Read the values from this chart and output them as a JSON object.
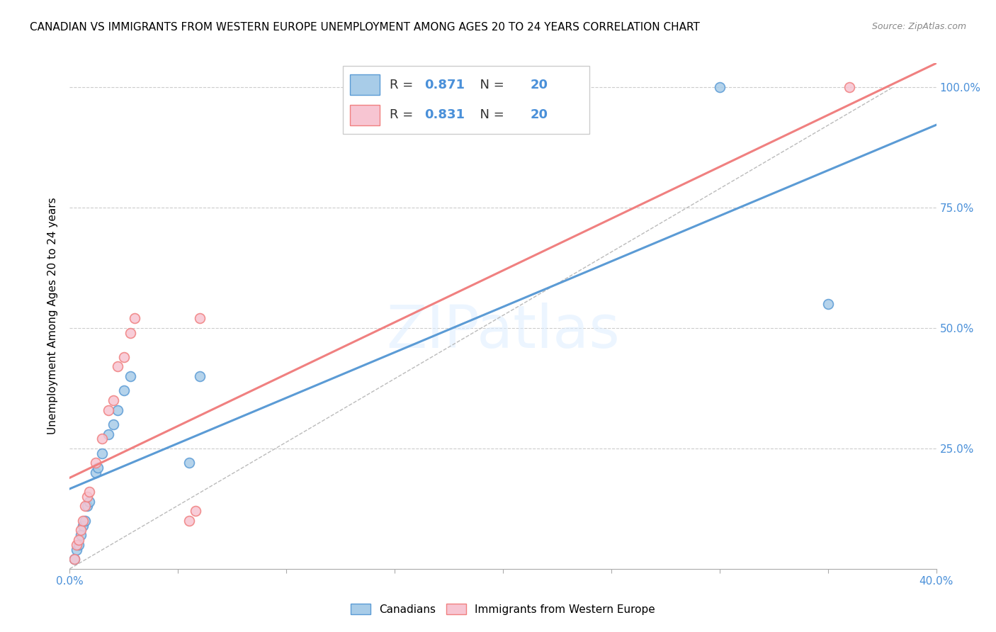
{
  "title": "CANADIAN VS IMMIGRANTS FROM WESTERN EUROPE UNEMPLOYMENT AMONG AGES 20 TO 24 YEARS CORRELATION CHART",
  "source": "Source: ZipAtlas.com",
  "ylabel": "Unemployment Among Ages 20 to 24 years",
  "xlim": [
    0.0,
    0.4
  ],
  "ylim": [
    0.0,
    1.05
  ],
  "xticks": [
    0.0,
    0.05,
    0.1,
    0.15,
    0.2,
    0.25,
    0.3,
    0.35,
    0.4
  ],
  "xtick_labels": [
    "0.0%",
    "",
    "",
    "",
    "",
    "",
    "",
    "",
    "40.0%"
  ],
  "ytick_positions": [
    0.0,
    0.25,
    0.5,
    0.75,
    1.0
  ],
  "right_ytick_labels": [
    "",
    "25.0%",
    "50.0%",
    "75.0%",
    "100.0%"
  ],
  "canadians_x": [
    0.002,
    0.003,
    0.004,
    0.005,
    0.006,
    0.007,
    0.008,
    0.009,
    0.012,
    0.013,
    0.015,
    0.018,
    0.02,
    0.022,
    0.025,
    0.028,
    0.055,
    0.06,
    0.3,
    0.35
  ],
  "canadians_y": [
    0.02,
    0.04,
    0.05,
    0.07,
    0.09,
    0.1,
    0.13,
    0.14,
    0.2,
    0.21,
    0.24,
    0.28,
    0.3,
    0.33,
    0.37,
    0.4,
    0.22,
    0.4,
    1.0,
    0.55
  ],
  "immigrants_x": [
    0.002,
    0.003,
    0.004,
    0.005,
    0.006,
    0.007,
    0.008,
    0.009,
    0.012,
    0.015,
    0.018,
    0.02,
    0.022,
    0.025,
    0.028,
    0.03,
    0.055,
    0.058,
    0.06,
    0.36
  ],
  "immigrants_y": [
    0.02,
    0.05,
    0.06,
    0.08,
    0.1,
    0.13,
    0.15,
    0.16,
    0.22,
    0.27,
    0.33,
    0.35,
    0.42,
    0.44,
    0.49,
    0.52,
    0.1,
    0.12,
    0.52,
    1.0
  ],
  "canadian_color": "#a8cce8",
  "immigrant_color": "#f7c5d2",
  "canadian_line_color": "#5b9bd5",
  "immigrant_line_color": "#f08080",
  "canadian_R": "0.871",
  "canadian_N": "20",
  "immigrant_R": "0.831",
  "immigrant_N": "20",
  "legend_label_canadian": "Canadians",
  "legend_label_immigrant": "Immigrants from Western Europe",
  "watermark": "ZIPatlas",
  "background_color": "#ffffff",
  "title_fontsize": 11,
  "axis_label_fontsize": 11,
  "tick_fontsize": 11,
  "ref_line_x": [
    0.0,
    0.38
  ],
  "ref_line_y": [
    0.0,
    1.0
  ]
}
